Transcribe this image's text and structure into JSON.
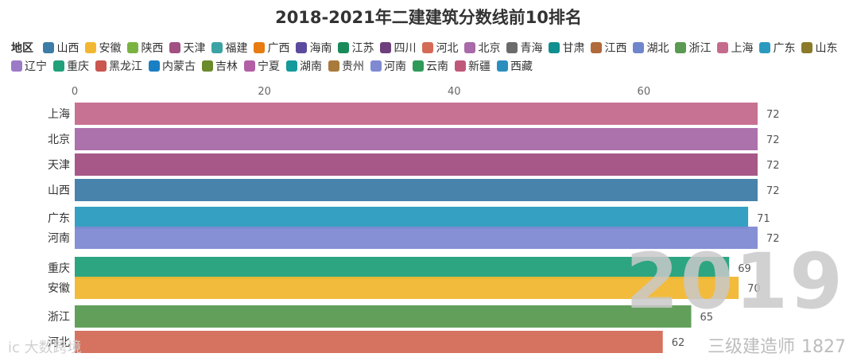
{
  "title": "2018-2021年二建建筑分数线前10排名",
  "legend": {
    "title": "地区",
    "items": [
      {
        "name": "山西",
        "color": "#3d7ca6"
      },
      {
        "name": "安徽",
        "color": "#f2b731"
      },
      {
        "name": "陕西",
        "color": "#7ab342"
      },
      {
        "name": "天津",
        "color": "#a24f82"
      },
      {
        "name": "福建",
        "color": "#3ba3a3"
      },
      {
        "name": "广西",
        "color": "#e67c12"
      },
      {
        "name": "海南",
        "color": "#5b4a9e"
      },
      {
        "name": "江苏",
        "color": "#1a8a5a"
      },
      {
        "name": "四川",
        "color": "#6e3f7d"
      },
      {
        "name": "河北",
        "color": "#d46b57"
      },
      {
        "name": "北京",
        "color": "#a86aa8"
      },
      {
        "name": "青海",
        "color": "#6b6b6b"
      },
      {
        "name": "甘肃",
        "color": "#0f8f8f"
      },
      {
        "name": "江西",
        "color": "#b06a3b"
      },
      {
        "name": "湖北",
        "color": "#6f86cc"
      },
      {
        "name": "浙江",
        "color": "#5a9a52"
      },
      {
        "name": "上海",
        "color": "#c46a8d"
      },
      {
        "name": "广东",
        "color": "#2a9bbf"
      },
      {
        "name": "山东",
        "color": "#8a7a2a"
      },
      {
        "name": "辽宁",
        "color": "#9b7ac7"
      },
      {
        "name": "重庆",
        "color": "#22a07a"
      },
      {
        "name": "黑龙江",
        "color": "#c9564f"
      },
      {
        "name": "内蒙古",
        "color": "#1b7fc4"
      },
      {
        "name": "吉林",
        "color": "#6b8a2a"
      },
      {
        "name": "宁夏",
        "color": "#b35fa6"
      },
      {
        "name": "湖南",
        "color": "#149a9a"
      },
      {
        "name": "贵州",
        "color": "#a87a3b"
      },
      {
        "name": "河南",
        "color": "#7f8ad3"
      },
      {
        "name": "云南",
        "color": "#2f9a5a"
      },
      {
        "name": "新疆",
        "color": "#c0587a"
      },
      {
        "name": "西藏",
        "color": "#2b8fbd"
      }
    ]
  },
  "chart_data": {
    "type": "bar",
    "orientation": "horizontal",
    "title": "2018-2021年二建建筑分数线前10排名",
    "xlim": [
      0,
      72
    ],
    "ticks": [
      0,
      20,
      40,
      60
    ],
    "grid": false,
    "legend_position": "top",
    "categories": [
      "上海",
      "北京",
      "天津",
      "山西",
      "广东",
      "河南",
      "重庆",
      "安徽",
      "浙江",
      "河北"
    ],
    "values": [
      72,
      72,
      72,
      72,
      71,
      72,
      69,
      70,
      65,
      62
    ],
    "colors": [
      "#c46a8d",
      "#a86aa8",
      "#a24f82",
      "#3d7ca6",
      "#2a9bbf",
      "#7f8ad3",
      "#22a07a",
      "#f2b731",
      "#5a9a52",
      "#d46b57"
    ]
  },
  "overlay": {
    "year": "2019",
    "caption": "三级建造师",
    "caption_number": "1827",
    "watermark": "ic 大数跨境"
  }
}
